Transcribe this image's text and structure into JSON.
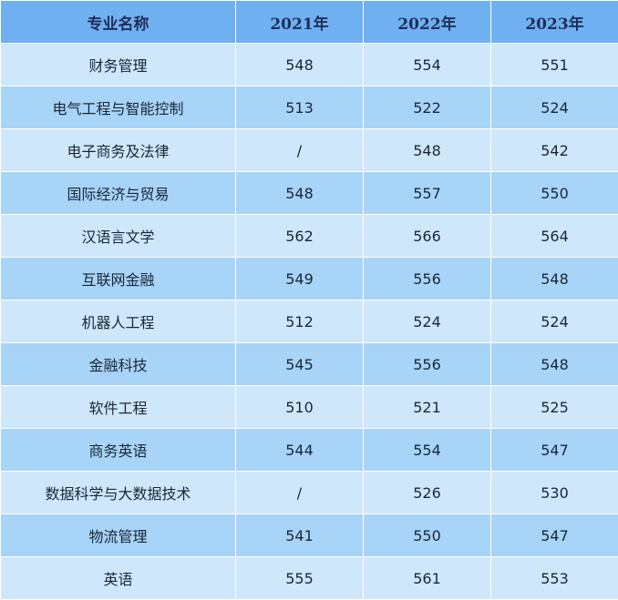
{
  "table": {
    "headers": [
      "专业名称",
      "2021年",
      "2022年",
      "2023年"
    ],
    "rows": [
      [
        "财务管理",
        "548",
        "554",
        "551"
      ],
      [
        "电气工程与智能控制",
        "513",
        "522",
        "524"
      ],
      [
        "电子商务及法律",
        "/",
        "548",
        "542"
      ],
      [
        "国际经济与贸易",
        "548",
        "557",
        "550"
      ],
      [
        "汉语言文学",
        "562",
        "566",
        "564"
      ],
      [
        "互联网金融",
        "549",
        "556",
        "548"
      ],
      [
        "机器人工程",
        "512",
        "524",
        "524"
      ],
      [
        "金融科技",
        "545",
        "556",
        "548"
      ],
      [
        "软件工程",
        "510",
        "521",
        "525"
      ],
      [
        "商务英语",
        "544",
        "554",
        "547"
      ],
      [
        "数据科学与大数据技术",
        "/",
        "526",
        "530"
      ],
      [
        "物流管理",
        "541",
        "550",
        "547"
      ],
      [
        "英语",
        "555",
        "561",
        "553"
      ]
    ]
  }
}
